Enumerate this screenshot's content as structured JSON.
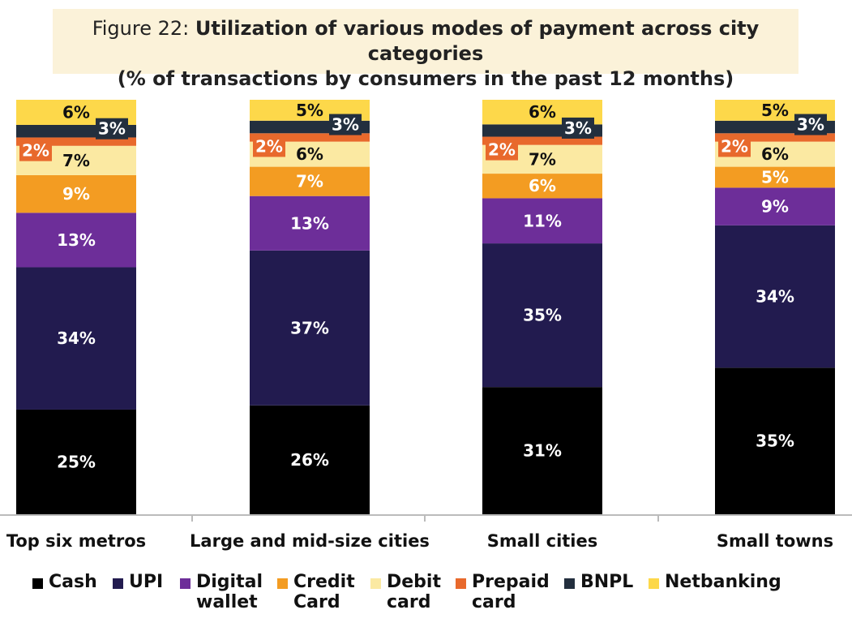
{
  "title": {
    "prefix": "Figure 22: ",
    "bold_line1": "Utilization of various modes of payment across city categories",
    "bold_line2": "(% of transactions by consumers in the past 12 months)"
  },
  "chart_data": {
    "type": "bar",
    "stacked": true,
    "title": "Figure 22: Utilization of various modes of payment across city categories (% of transactions by consumers in the past 12 months)",
    "categories": [
      "Top six metros",
      "Large and mid-size cities",
      "Small cities",
      "Small towns"
    ],
    "series": [
      {
        "name": "Cash",
        "color": "#000000",
        "label_color": "#ffffff",
        "values": [
          25,
          26,
          31,
          35
        ]
      },
      {
        "name": "UPI",
        "color": "#221b4f",
        "label_color": "#ffffff",
        "values": [
          34,
          37,
          35,
          34
        ]
      },
      {
        "name": "Digital wallet",
        "color": "#6d2e99",
        "label_color": "#ffffff",
        "values": [
          13,
          13,
          11,
          9
        ]
      },
      {
        "name": "Credit Card",
        "color": "#f39c22",
        "label_color": "#ffffff",
        "values": [
          9,
          7,
          6,
          5
        ]
      },
      {
        "name": "Debit card",
        "color": "#fbe9a2",
        "label_color": "#111111",
        "values": [
          7,
          6,
          7,
          6
        ]
      },
      {
        "name": "Prepaid card",
        "color": "#e8692c",
        "label_color": "#ffffff",
        "values": [
          2,
          2,
          2,
          2
        ]
      },
      {
        "name": "BNPL",
        "color": "#232f3e",
        "label_color": "#ffffff",
        "values": [
          3,
          3,
          3,
          3
        ]
      },
      {
        "name": "Netbanking",
        "color": "#fdd84a",
        "label_color": "#111111",
        "values": [
          6,
          5,
          6,
          5
        ]
      }
    ],
    "data_labels": [
      [
        "25%",
        "34%",
        "13%",
        "9%",
        "7%",
        "2%",
        "3%",
        "6%"
      ],
      [
        "26%",
        "37%",
        "13%",
        "7%",
        "6%",
        "2%",
        "3%",
        "5%"
      ],
      [
        "31%",
        "35%",
        "11%",
        "6%",
        "7%",
        "2%",
        "3%",
        "6%"
      ],
      [
        "35%",
        "34%",
        "9%",
        "5%",
        "6%",
        "2%",
        "3%",
        "5%"
      ]
    ],
    "xlabel": "",
    "ylabel": "",
    "grid": false,
    "legend_position": "bottom"
  },
  "legend": [
    {
      "line1": "Cash",
      "line2": "",
      "color": "#000000"
    },
    {
      "line1": "UPI",
      "line2": "",
      "color": "#221b4f"
    },
    {
      "line1": "Digital",
      "line2": "wallet",
      "color": "#6d2e99"
    },
    {
      "line1": "Credit",
      "line2": "Card",
      "color": "#f39c22"
    },
    {
      "line1": "Debit",
      "line2": "card",
      "color": "#fbe9a2"
    },
    {
      "line1": "Prepaid",
      "line2": "card",
      "color": "#e8692c"
    },
    {
      "line1": "BNPL",
      "line2": "",
      "color": "#232f3e"
    },
    {
      "line1": "Netbanking",
      "line2": "",
      "color": "#fdd84a"
    }
  ]
}
